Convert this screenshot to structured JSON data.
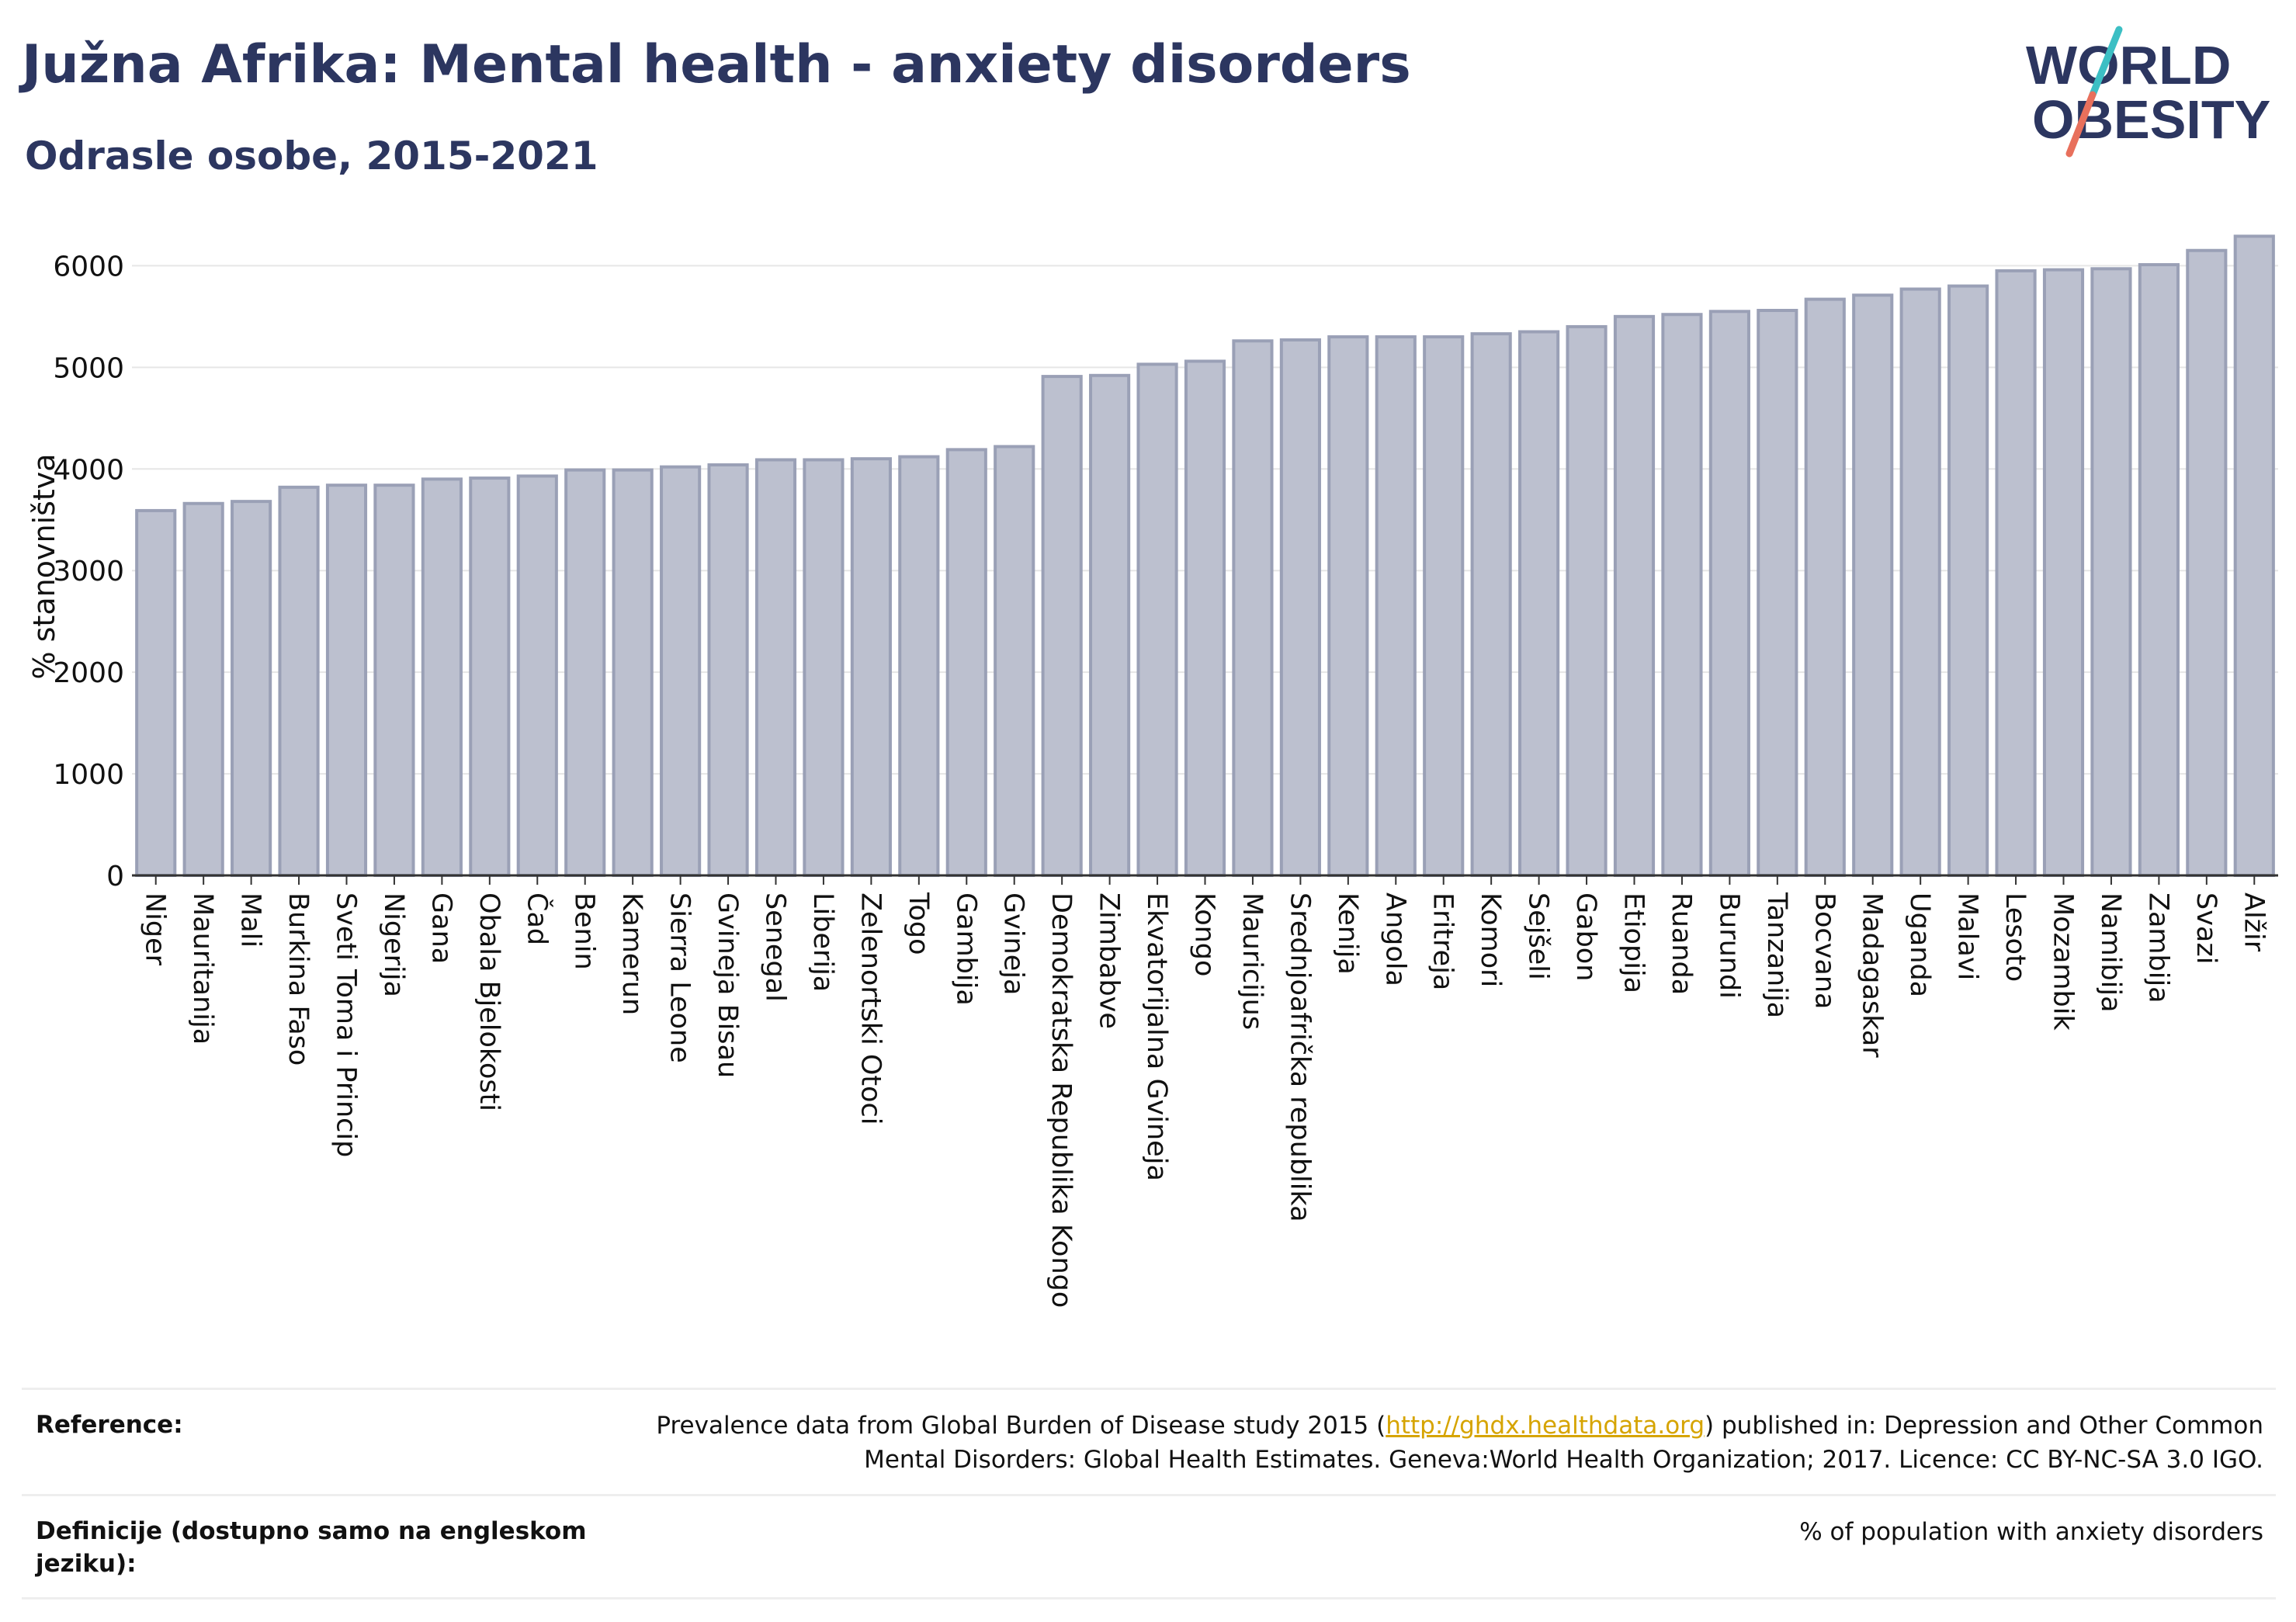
{
  "header": {
    "title": "Južna Afrika: Mental health - anxiety disorders",
    "subtitle": "Odrasle osobe, 2015-2021"
  },
  "logo": {
    "line1": "WORLD",
    "line2": "OBESITY"
  },
  "colors": {
    "title": "#2c3660",
    "bar_fill": "#bcc0cf",
    "bar_stroke": "#9aa0b6",
    "logo_teal": "#3cbfc4",
    "logo_coral": "#e8705c",
    "link": "#d6a400"
  },
  "chart_data": {
    "type": "bar",
    "ylabel": "% stanovništva",
    "ylim": [
      0,
      6400
    ],
    "yticks": [
      0,
      1000,
      2000,
      3000,
      4000,
      5000,
      6000
    ],
    "grid": true,
    "categories": [
      "Niger",
      "Mauritanija",
      "Mali",
      "Burkina Faso",
      "Sveti Toma i Princip",
      "Nigerija",
      "Gana",
      "Obala Bjelokosti",
      "Čad",
      "Benin",
      "Kamerun",
      "Sierra Leone",
      "Gvineja Bisau",
      "Senegal",
      "Liberija",
      "Zelenortski Otoci",
      "Togo",
      "Gambija",
      "Gvineja",
      "Demokratska Republika Kongo",
      "Zimbabve",
      "Ekvatorijalna Gvineja",
      "Kongo",
      "Mauricijus",
      "Srednjoafrička republika",
      "Kenija",
      "Angola",
      "Eritreja",
      "Komori",
      "Sejšeli",
      "Gabon",
      "Etiopija",
      "Ruanda",
      "Burundi",
      "Tanzanija",
      "Bocvana",
      "Madagaskar",
      "Uganda",
      "Malavi",
      "Lesoto",
      "Mozambik",
      "Namibija",
      "Zambija",
      "Svazi",
      "Alžir"
    ],
    "values": [
      3590,
      3660,
      3680,
      3820,
      3840,
      3840,
      3900,
      3910,
      3930,
      3990,
      3990,
      4020,
      4040,
      4090,
      4090,
      4100,
      4120,
      4190,
      4220,
      4910,
      4920,
      5030,
      5060,
      5260,
      5270,
      5300,
      5300,
      5300,
      5330,
      5350,
      5400,
      5500,
      5520,
      5550,
      5560,
      5670,
      5710,
      5770,
      5800,
      5950,
      5960,
      5970,
      6010,
      6150,
      6290
    ]
  },
  "footer": {
    "reference_label": "Reference:",
    "reference_pre": "Prevalence data from Global Burden of Disease study 2015 (",
    "reference_link": "http://ghdx.healthdata.org",
    "reference_post": ") published in: Depression and Other Common Mental Disorders: Global Health Estimates. Geneva:World Health Organization; 2017. Licence: CC BY-NC-SA 3.0 IGO.",
    "definition_label": "Definicije (dostupno samo na engleskom jeziku):",
    "definition_text": "% of population with anxiety disorders"
  }
}
